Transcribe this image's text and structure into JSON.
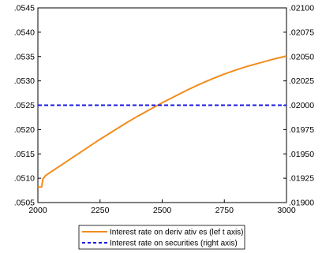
{
  "chart_data": {
    "type": "line",
    "title": "",
    "xlabel": "",
    "ylabel_left": "",
    "ylabel_right": "",
    "x_range": [
      2000,
      3000
    ],
    "x_ticks": [
      "2000",
      "2250",
      "2500",
      "2750",
      "3000"
    ],
    "ylim_left": [
      0.0505,
      0.0545
    ],
    "y_ticks_left": [
      ".0505",
      ".0510",
      ".0515",
      ".0520",
      ".0525",
      ".0530",
      ".0535",
      ".0540",
      ".0545"
    ],
    "ylim_right": [
      0.019,
      0.021
    ],
    "y_ticks_right": [
      ".01900",
      ".01925",
      ".01950",
      ".01975",
      ".02000",
      ".02025",
      ".02050",
      ".02075",
      ".02100"
    ],
    "grid": false,
    "legend_position": "bottom-center",
    "series": [
      {
        "name": "Interest rate on deriv ativ es (lef t axis)",
        "axis": "left",
        "color": "#f28c1c",
        "style": "solid",
        "x": [
          2000,
          2010,
          2015,
          2020,
          2030,
          2050,
          2100,
          2150,
          2200,
          2250,
          2300,
          2350,
          2400,
          2450,
          2500,
          2550,
          2600,
          2650,
          2700,
          2750,
          2800,
          2850,
          2900,
          2950,
          3000
        ],
        "y": [
          0.05082,
          0.05082,
          0.05082,
          0.05098,
          0.05105,
          0.05112,
          0.05129,
          0.05146,
          0.05163,
          0.0518,
          0.05196,
          0.05212,
          0.05227,
          0.05241,
          0.05255,
          0.05268,
          0.05281,
          0.05293,
          0.05304,
          0.05314,
          0.05323,
          0.05331,
          0.05338,
          0.05345,
          0.05351
        ]
      },
      {
        "name": "Interest rate on securities (right axis)",
        "axis": "right",
        "color": "#1a1adf",
        "style": "dashed",
        "x": [
          2000,
          3000
        ],
        "y": [
          0.02,
          0.02
        ]
      }
    ]
  }
}
